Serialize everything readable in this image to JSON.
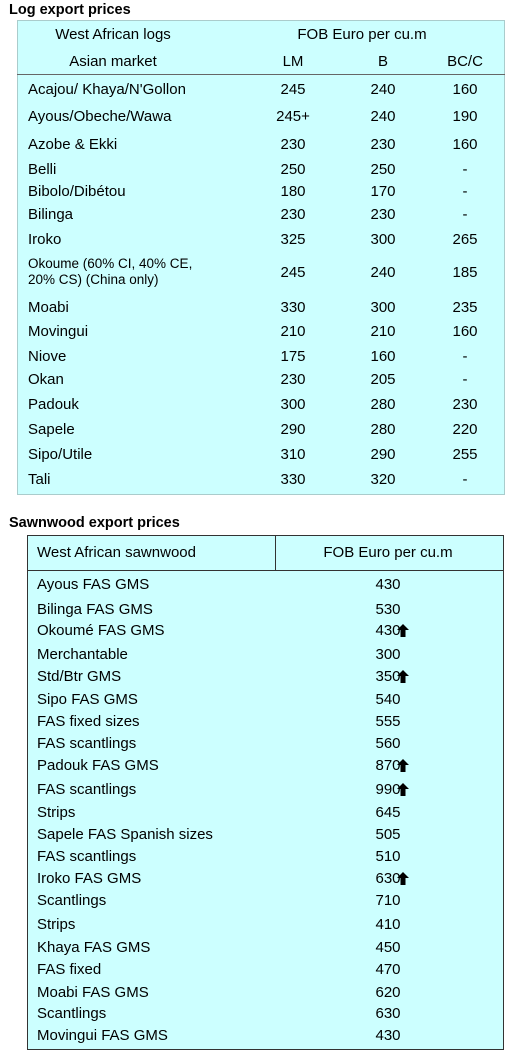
{
  "log_table": {
    "title": "Log export prices",
    "header": {
      "group": "West African logs",
      "price_head": "FOB Euro per cu.m",
      "market": "Asian market",
      "columns": [
        "LM",
        "B",
        "BC/C"
      ]
    },
    "rows": [
      [
        "Acajou/ Khaya/N'Gollon",
        "245",
        "240",
        "160"
      ],
      [
        "Ayous/Obeche/Wawa",
        "245+",
        "240",
        "190"
      ],
      [
        "Azobe & Ekki",
        "230",
        "230",
        "160"
      ],
      [
        "Belli",
        "250",
        "250",
        "-"
      ],
      [
        "Bibolo/Dibétou",
        "180",
        "170",
        "-"
      ],
      [
        "Bilinga",
        "230",
        "230",
        "-"
      ],
      [
        "Iroko",
        "325",
        "300",
        "265"
      ],
      [
        "Okoume (60% CI, 40% CE,\n20% CS) (China only)",
        "245",
        "240",
        "185"
      ],
      [
        "Moabi",
        "330",
        "300",
        "235"
      ],
      [
        "Movingui",
        "210",
        "210",
        "160"
      ],
      [
        "Niove",
        "175",
        "160",
        "-"
      ],
      [
        "Okan",
        "230",
        "205",
        "-"
      ],
      [
        "Padouk",
        "300",
        "280",
        "230"
      ],
      [
        "Sapele",
        "290",
        "280",
        "220"
      ],
      [
        "Sipo/Utile",
        "310",
        "290",
        "255"
      ],
      [
        "Tali",
        "330",
        "320",
        "-"
      ]
    ]
  },
  "sawn_table": {
    "title": "Sawnwood export prices",
    "header": [
      "West African sawnwood",
      "FOB Euro per cu.m"
    ],
    "rows": [
      {
        "name": "Ayous FAS GMS",
        "price": "430",
        "arrow": false
      },
      {
        "name": "Bilinga FAS GMS",
        "price": "530",
        "arrow": false
      },
      {
        "name": "Okoumé FAS GMS",
        "price": "430",
        "arrow": true
      },
      {
        "name": "Merchantable",
        "price": "300",
        "arrow": false
      },
      {
        "name": "Std/Btr GMS",
        "price": "350",
        "arrow": true
      },
      {
        "name": "Sipo FAS GMS",
        "price": "540",
        "arrow": false
      },
      {
        "name": "FAS fixed sizes",
        "price": "555",
        "arrow": false
      },
      {
        "name": "FAS scantlings",
        "price": "560",
        "arrow": false
      },
      {
        "name": "Padouk FAS GMS",
        "price": "870",
        "arrow": true
      },
      {
        "name": "FAS scantlings",
        "price": "990",
        "arrow": true
      },
      {
        "name": "Strips",
        "price": "645",
        "arrow": false
      },
      {
        "name": "Sapele FAS Spanish sizes",
        "price": "505",
        "arrow": false
      },
      {
        "name": "FAS scantlings",
        "price": "510",
        "arrow": false
      },
      {
        "name": "Iroko FAS GMS",
        "price": "630",
        "arrow": true
      },
      {
        "name": "Scantlings",
        "price": "710",
        "arrow": false
      },
      {
        "name": "Strips",
        "price": "410",
        "arrow": false
      },
      {
        "name": "Khaya FAS GMS",
        "price": "450",
        "arrow": false
      },
      {
        "name": "FAS fixed",
        "price": "470",
        "arrow": false
      },
      {
        "name": "Moabi FAS GMS",
        "price": "620",
        "arrow": false
      },
      {
        "name": "Scantlings",
        "price": "630",
        "arrow": false
      },
      {
        "name": "Movingui FAS GMS",
        "price": "430",
        "arrow": false
      }
    ]
  }
}
